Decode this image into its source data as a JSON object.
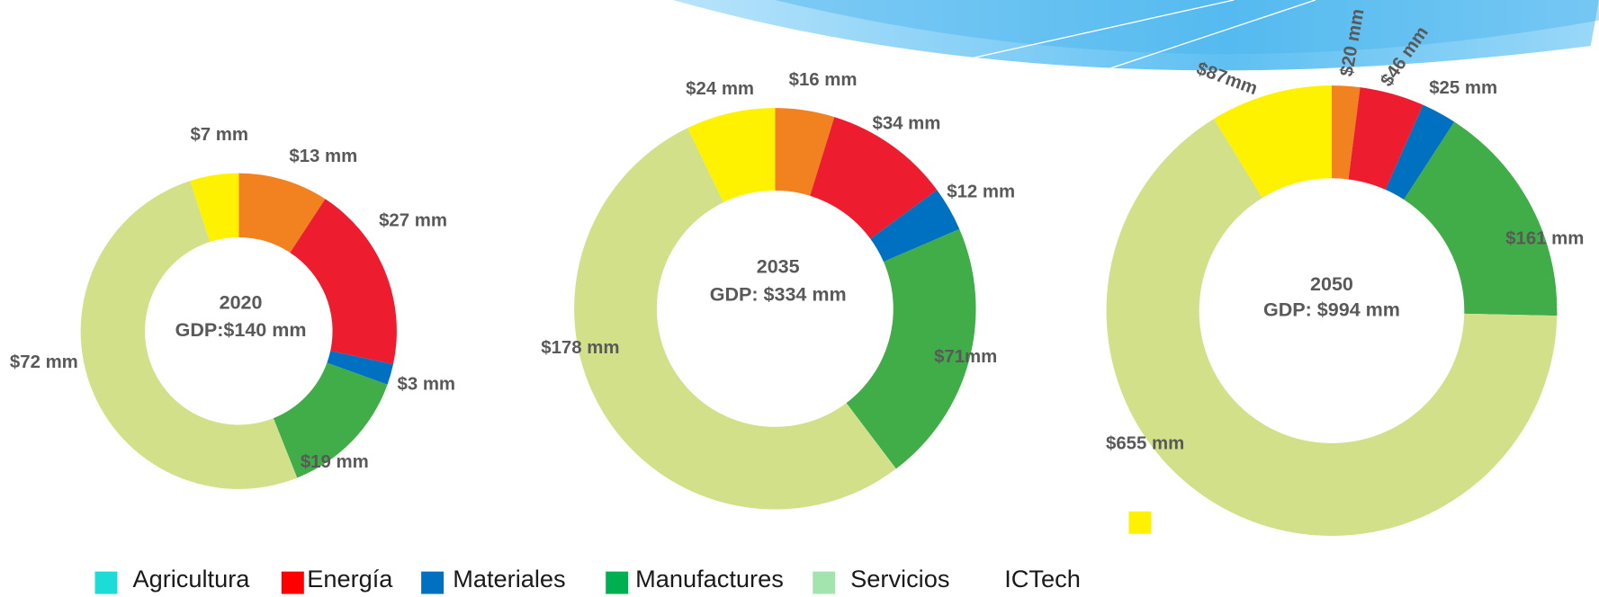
{
  "chart_data": [
    {
      "type": "pie",
      "title": "2020",
      "subtitle": "GDP:$140 mm",
      "donut": true,
      "values": [
        13,
        27,
        3,
        19,
        72,
        7
      ],
      "value_labels": [
        "$13 mm",
        "$27 mm",
        "$3 mm",
        "$19 mm",
        "$72 mm",
        "$7 mm"
      ],
      "colors": [
        "#f28120",
        "#ed1c2e",
        "#0070c0",
        "#40ad48",
        "#d2e08a",
        "#fff200"
      ]
    },
    {
      "type": "pie",
      "title": "2035",
      "subtitle": "GDP: $334 mm",
      "donut": true,
      "values": [
        16,
        34,
        12,
        71,
        178,
        24
      ],
      "value_labels": [
        "$16 mm",
        "$34 mm",
        "$12 mm",
        "$71mm",
        "$178 mm",
        "$24 mm"
      ],
      "colors": [
        "#f28120",
        "#ed1c2e",
        "#0070c0",
        "#40ad48",
        "#d2e08a",
        "#fff200"
      ]
    },
    {
      "type": "pie",
      "title": "2050",
      "subtitle": "GDP: $994 mm",
      "donut": true,
      "values": [
        20,
        46,
        25,
        161,
        655,
        87
      ],
      "value_labels": [
        "$20 mm",
        "$46 mm",
        "$25 mm",
        "$161 mm",
        "$655 mm",
        "$87mm"
      ],
      "colors": [
        "#f28120",
        "#ed1c2e",
        "#0070c0",
        "#40ad48",
        "#d2e08a",
        "#fff200"
      ]
    }
  ],
  "legend": {
    "items": [
      {
        "name": "Agricultura",
        "color": "#1ddbd6"
      },
      {
        "name": "Energía",
        "color": "#ff0000"
      },
      {
        "name": "Materiales",
        "color": "#0070c0"
      },
      {
        "name": "Manufactures",
        "color": "#00b050"
      },
      {
        "name": "Servicios",
        "color": "#a3e4ae"
      },
      {
        "name": "ICTech",
        "color": "#fff200"
      }
    ]
  }
}
